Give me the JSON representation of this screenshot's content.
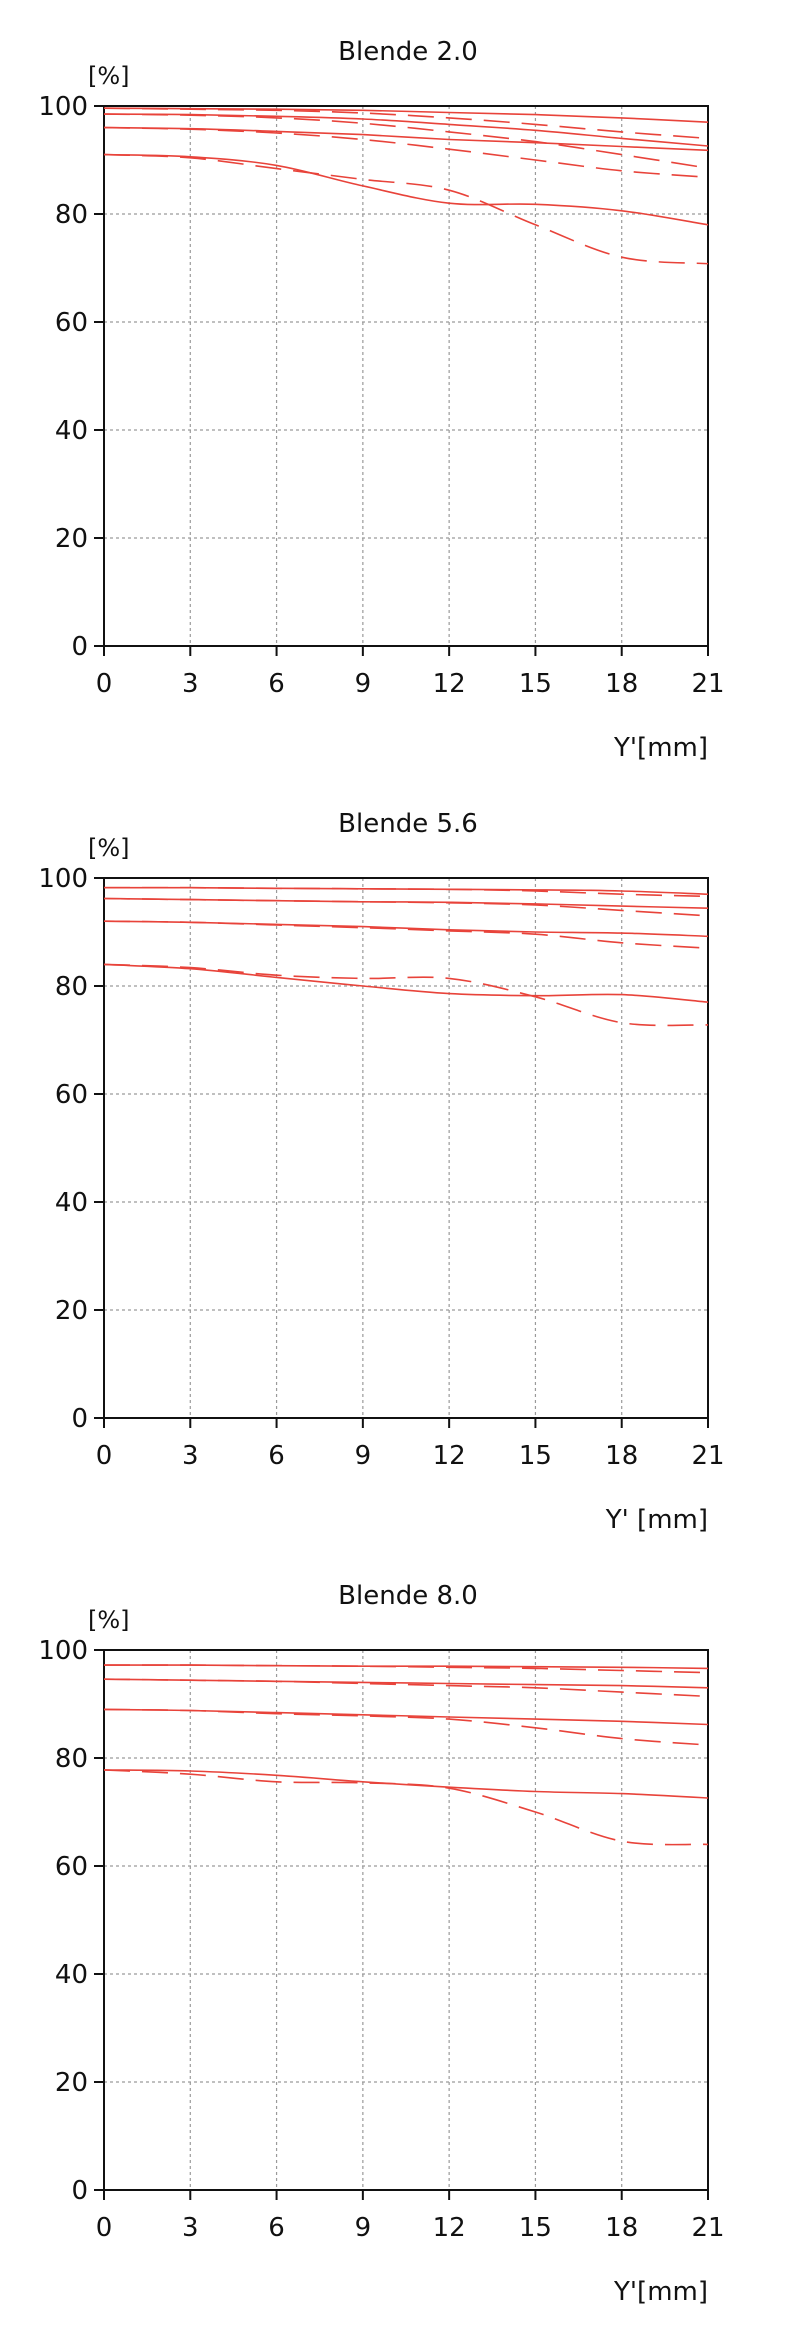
{
  "colors": {
    "curve": "#e8433a",
    "grid": "#9a9a9a",
    "axis": "#111111"
  },
  "chart_data": [
    {
      "type": "line",
      "title": "Blende 2.0",
      "ylabel": "[%]",
      "xlabel": "Y'[mm]",
      "xlim": [
        0,
        21
      ],
      "ylim": [
        0,
        100
      ],
      "xticks": [
        "0",
        "3",
        "6",
        "9",
        "12",
        "15",
        "18",
        "21"
      ],
      "yticks": [
        "0",
        "20",
        "40",
        "60",
        "80",
        "100"
      ],
      "grid": true,
      "series": [
        {
          "style": "solid",
          "x": [
            0,
            3,
            6,
            9,
            12,
            15,
            18,
            21
          ],
          "y": [
            99.6,
            99.5,
            99.4,
            99.2,
            98.8,
            98.4,
            97.8,
            97.0
          ]
        },
        {
          "style": "dashed",
          "x": [
            0,
            3,
            6,
            9,
            12,
            15,
            18,
            21
          ],
          "y": [
            99.6,
            99.4,
            99.2,
            98.7,
            97.8,
            96.6,
            95.2,
            94.0
          ]
        },
        {
          "style": "solid",
          "x": [
            0,
            3,
            6,
            9,
            12,
            15,
            18,
            21
          ],
          "y": [
            98.5,
            98.4,
            98.1,
            97.6,
            96.6,
            95.5,
            94.0,
            92.6
          ]
        },
        {
          "style": "dashed",
          "x": [
            0,
            3,
            6,
            9,
            12,
            15,
            18,
            21
          ],
          "y": [
            98.5,
            98.3,
            97.8,
            96.8,
            95.2,
            93.4,
            91.0,
            88.5
          ]
        },
        {
          "style": "solid",
          "x": [
            0,
            3,
            6,
            9,
            12,
            15,
            18,
            21
          ],
          "y": [
            96.0,
            95.8,
            95.3,
            94.7,
            93.8,
            93.2,
            92.5,
            91.8
          ]
        },
        {
          "style": "dashed",
          "x": [
            0,
            3,
            6,
            9,
            12,
            15,
            18,
            21
          ],
          "y": [
            96.0,
            95.7,
            95.0,
            93.8,
            92.0,
            90.0,
            88.0,
            86.8
          ]
        },
        {
          "style": "solid",
          "x": [
            0,
            3,
            6,
            9,
            12,
            15,
            18,
            21
          ],
          "y": [
            91.0,
            90.6,
            89.0,
            85.2,
            82.0,
            81.8,
            80.6,
            78.0
          ]
        },
        {
          "style": "dashed",
          "x": [
            0,
            3,
            6,
            9,
            12,
            15,
            18,
            21
          ],
          "y": [
            91.0,
            90.4,
            88.4,
            86.4,
            84.4,
            78.0,
            72.0,
            70.8
          ]
        }
      ]
    },
    {
      "type": "line",
      "title": "Blende 5.6",
      "ylabel": "[%]",
      "xlabel": "Y' [mm]",
      "xlim": [
        0,
        21
      ],
      "ylim": [
        0,
        100
      ],
      "xticks": [
        "0",
        "3",
        "6",
        "9",
        "12",
        "15",
        "18",
        "21"
      ],
      "yticks": [
        "0",
        "20",
        "40",
        "60",
        "80",
        "100"
      ],
      "grid": true,
      "series": [
        {
          "style": "solid",
          "x": [
            0,
            3,
            6,
            9,
            12,
            15,
            18,
            21
          ],
          "y": [
            98.2,
            98.2,
            98.1,
            98.0,
            97.9,
            97.8,
            97.6,
            97.0
          ]
        },
        {
          "style": "dashed",
          "x": [
            0,
            3,
            6,
            9,
            12,
            15,
            18,
            21
          ],
          "y": [
            98.2,
            98.2,
            98.1,
            98.0,
            97.9,
            97.6,
            97.0,
            96.6
          ]
        },
        {
          "style": "solid",
          "x": [
            0,
            3,
            6,
            9,
            12,
            15,
            18,
            21
          ],
          "y": [
            96.2,
            96.0,
            95.8,
            95.6,
            95.5,
            95.2,
            94.8,
            94.4
          ]
        },
        {
          "style": "dashed",
          "x": [
            0,
            3,
            6,
            9,
            12,
            15,
            18,
            21
          ],
          "y": [
            96.2,
            96.0,
            95.8,
            95.6,
            95.4,
            95.0,
            94.0,
            93.0
          ]
        },
        {
          "style": "solid",
          "x": [
            0,
            3,
            6,
            9,
            12,
            15,
            18,
            21
          ],
          "y": [
            92.0,
            91.8,
            91.4,
            91.0,
            90.4,
            90.0,
            89.8,
            89.2
          ]
        },
        {
          "style": "dashed",
          "x": [
            0,
            3,
            6,
            9,
            12,
            15,
            18,
            21
          ],
          "y": [
            92.0,
            91.8,
            91.3,
            90.8,
            90.2,
            89.6,
            88.0,
            87.0
          ]
        },
        {
          "style": "solid",
          "x": [
            0,
            3,
            6,
            9,
            12,
            15,
            18,
            21
          ],
          "y": [
            84.0,
            83.2,
            81.6,
            80.0,
            78.6,
            78.2,
            78.4,
            77.0
          ]
        },
        {
          "style": "dashed",
          "x": [
            0,
            3,
            6,
            9,
            12,
            15,
            18,
            21
          ],
          "y": [
            84.0,
            83.4,
            82.0,
            81.4,
            81.4,
            78.0,
            73.2,
            72.8
          ]
        }
      ]
    },
    {
      "type": "line",
      "title": "Blende 8.0",
      "ylabel": "[%]",
      "xlabel": "Y'[mm]",
      "xlim": [
        0,
        21
      ],
      "ylim": [
        0,
        100
      ],
      "xticks": [
        "0",
        "3",
        "6",
        "9",
        "12",
        "15",
        "18",
        "21"
      ],
      "yticks": [
        "0",
        "20",
        "40",
        "60",
        "80",
        "100"
      ],
      "grid": true,
      "series": [
        {
          "style": "solid",
          "x": [
            0,
            3,
            6,
            9,
            12,
            15,
            18,
            21
          ],
          "y": [
            97.2,
            97.2,
            97.1,
            97.0,
            97.0,
            96.9,
            96.8,
            96.6
          ]
        },
        {
          "style": "dashed",
          "x": [
            0,
            3,
            6,
            9,
            12,
            15,
            18,
            21
          ],
          "y": [
            97.2,
            97.2,
            97.1,
            97.0,
            96.8,
            96.6,
            96.2,
            95.8
          ]
        },
        {
          "style": "solid",
          "x": [
            0,
            3,
            6,
            9,
            12,
            15,
            18,
            21
          ],
          "y": [
            94.6,
            94.4,
            94.2,
            94.0,
            93.8,
            93.6,
            93.4,
            93.0
          ]
        },
        {
          "style": "dashed",
          "x": [
            0,
            3,
            6,
            9,
            12,
            15,
            18,
            21
          ],
          "y": [
            94.6,
            94.4,
            94.2,
            93.8,
            93.4,
            93.0,
            92.2,
            91.4
          ]
        },
        {
          "style": "solid",
          "x": [
            0,
            3,
            6,
            9,
            12,
            15,
            18,
            21
          ],
          "y": [
            89.0,
            88.8,
            88.4,
            88.0,
            87.6,
            87.2,
            86.8,
            86.2
          ]
        },
        {
          "style": "dashed",
          "x": [
            0,
            3,
            6,
            9,
            12,
            15,
            18,
            21
          ],
          "y": [
            89.0,
            88.8,
            88.2,
            87.8,
            87.2,
            85.6,
            83.6,
            82.4
          ]
        },
        {
          "style": "solid",
          "x": [
            0,
            3,
            6,
            9,
            12,
            15,
            18,
            21
          ],
          "y": [
            77.8,
            77.6,
            76.8,
            75.6,
            74.6,
            73.8,
            73.4,
            72.6
          ]
        },
        {
          "style": "dashed",
          "x": [
            0,
            3,
            6,
            9,
            12,
            15,
            18,
            21
          ],
          "y": [
            77.8,
            77.0,
            75.6,
            75.4,
            74.4,
            70.0,
            64.6,
            64.0
          ]
        }
      ]
    }
  ]
}
